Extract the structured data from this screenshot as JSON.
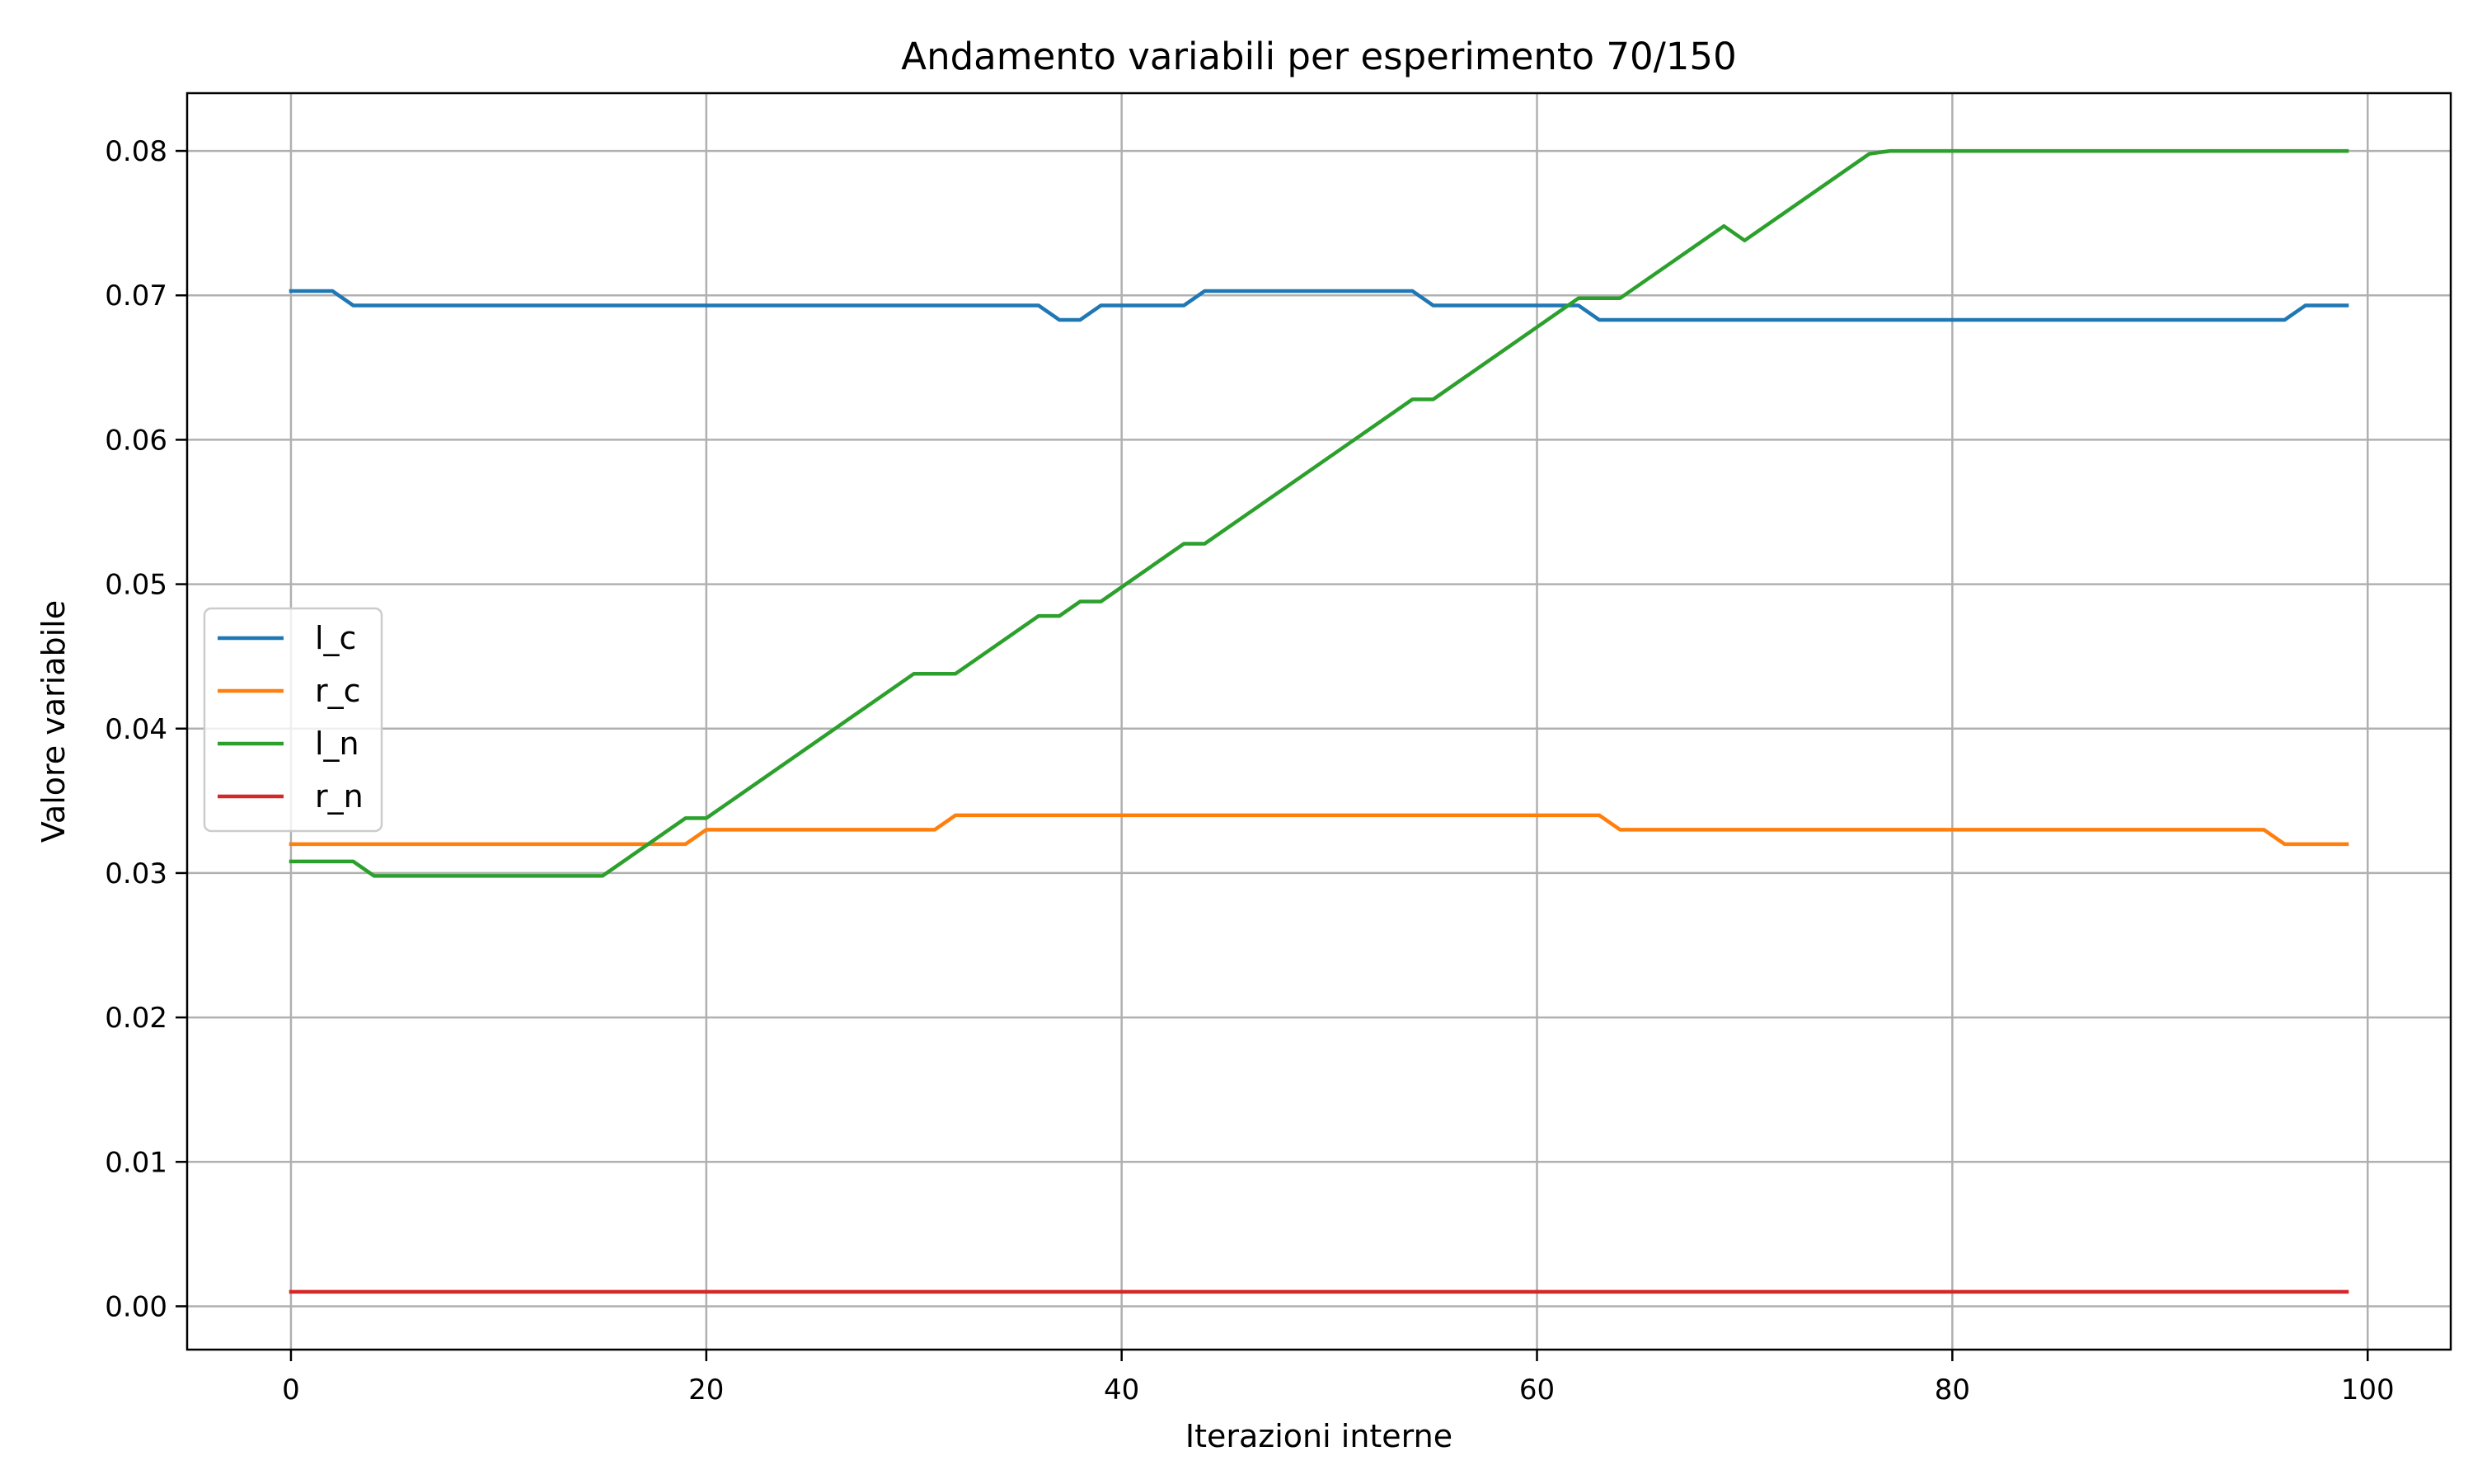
{
  "chart_data": {
    "type": "line",
    "title": "Andamento variabili per esperimento 70/150",
    "xlabel": "Iterazioni interne",
    "ylabel": "Valore variabile",
    "xlim": [
      -5,
      104
    ],
    "ylim": [
      -0.003,
      0.084
    ],
    "xticks": [
      0,
      20,
      40,
      60,
      80,
      100
    ],
    "xtick_labels": [
      "0",
      "20",
      "40",
      "60",
      "80",
      "100"
    ],
    "yticks": [
      0.0,
      0.01,
      0.02,
      0.03,
      0.04,
      0.05,
      0.06,
      0.07,
      0.08
    ],
    "ytick_labels": [
      "0.00",
      "0.01",
      "0.02",
      "0.03",
      "0.04",
      "0.05",
      "0.06",
      "0.07",
      "0.08"
    ],
    "grid": true,
    "legend_position": "center-left",
    "series": [
      {
        "name": "l_c",
        "color": "#1f77b4",
        "points": [
          [
            0,
            0.0703
          ],
          [
            2,
            0.0703
          ],
          [
            3,
            0.0693
          ],
          [
            36,
            0.0693
          ],
          [
            37,
            0.0683
          ],
          [
            38,
            0.0683
          ],
          [
            39,
            0.0693
          ],
          [
            43,
            0.0693
          ],
          [
            44,
            0.0703
          ],
          [
            54,
            0.0703
          ],
          [
            55,
            0.0693
          ],
          [
            62,
            0.0693
          ],
          [
            63,
            0.0683
          ],
          [
            96,
            0.0683
          ],
          [
            97,
            0.0693
          ],
          [
            99,
            0.0693
          ]
        ]
      },
      {
        "name": "r_c",
        "color": "#ff7f0e",
        "points": [
          [
            0,
            0.032
          ],
          [
            19,
            0.032
          ],
          [
            20,
            0.033
          ],
          [
            31,
            0.033
          ],
          [
            32,
            0.034
          ],
          [
            63,
            0.034
          ],
          [
            64,
            0.033
          ],
          [
            95,
            0.033
          ],
          [
            96,
            0.032
          ],
          [
            99,
            0.032
          ]
        ]
      },
      {
        "name": "l_n",
        "color": "#2ca02c",
        "points": [
          [
            0,
            0.0308
          ],
          [
            3,
            0.0308
          ],
          [
            4,
            0.0298
          ],
          [
            15,
            0.0298
          ],
          [
            19,
            0.0338
          ],
          [
            20,
            0.0338
          ],
          [
            30,
            0.0438
          ],
          [
            32,
            0.0438
          ],
          [
            36,
            0.0478
          ],
          [
            37,
            0.0478
          ],
          [
            38,
            0.0488
          ],
          [
            39,
            0.0488
          ],
          [
            43,
            0.0528
          ],
          [
            44,
            0.0528
          ],
          [
            54,
            0.0628
          ],
          [
            55,
            0.0628
          ],
          [
            62,
            0.0698
          ],
          [
            64,
            0.0698
          ],
          [
            69,
            0.0748
          ],
          [
            70,
            0.0738
          ],
          [
            76,
            0.0798
          ],
          [
            77,
            0.08
          ],
          [
            99,
            0.08
          ]
        ]
      },
      {
        "name": "r_n",
        "color": "#d62728",
        "points": [
          [
            0,
            0.001
          ],
          [
            99,
            0.001
          ]
        ]
      }
    ]
  }
}
